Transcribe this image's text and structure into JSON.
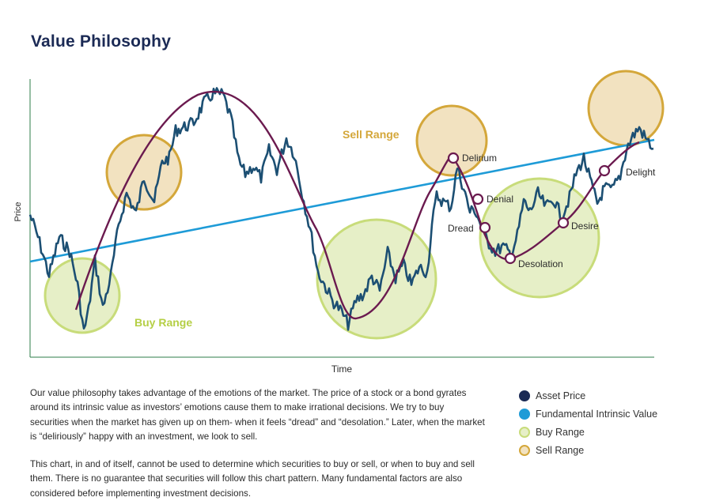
{
  "title": "Value Philosophy",
  "paragraphs": [
    "Our value philosophy takes advantage of the emotions of the market. The price of a stock or a bond gyrates around its intrinsic value as investors’ emotions cause them to make irrational decisions. We try to buy securities when the market has given up on them- when it feels “dread” and “desolation.” Later, when the market is “deliriously” happy with an investment, we look to sell.",
    "This chart, in and of itself, cannot be used to determine which securities to buy or sell, or when to buy and sell them. There is no guarantee that securities will follow this chart pattern. Many fundamental factors are also considered before implementing investment decisions."
  ],
  "legend": [
    {
      "label": "Asset Price",
      "fill": "#1b2a55",
      "stroke": "#1b2a55"
    },
    {
      "label": "Fundamental Intrinsic Value",
      "fill": "#1e9bd7",
      "stroke": "#1e9bd7"
    },
    {
      "label": "Buy Range",
      "fill": "#e6efc7",
      "stroke": "#c8dc7a"
    },
    {
      "label": "Sell Range",
      "fill": "#f2e2c0",
      "stroke": "#d4a73a"
    }
  ],
  "chart_data": {
    "type": "line",
    "xlabel": "Time",
    "ylabel": "Price",
    "colors": {
      "asset": "#1c4f73",
      "intrinsic": "#1e9bd7",
      "sentiment": "#6b1a4f",
      "buy_fill": "#e6efc7",
      "buy_stroke": "#c8dc7a",
      "sell_fill": "#f2e2c0",
      "sell_stroke": "#d4a73a",
      "buy_label": "#b5cf45",
      "sell_label": "#d4a73a",
      "axis": "#2e7d4a"
    },
    "range_labels": {
      "buy": "Buy Range",
      "sell": "Sell Range"
    },
    "emotion_labels": [
      "Delirium",
      "Denial",
      "Dread",
      "Desolation",
      "Desire",
      "Delight"
    ]
  }
}
